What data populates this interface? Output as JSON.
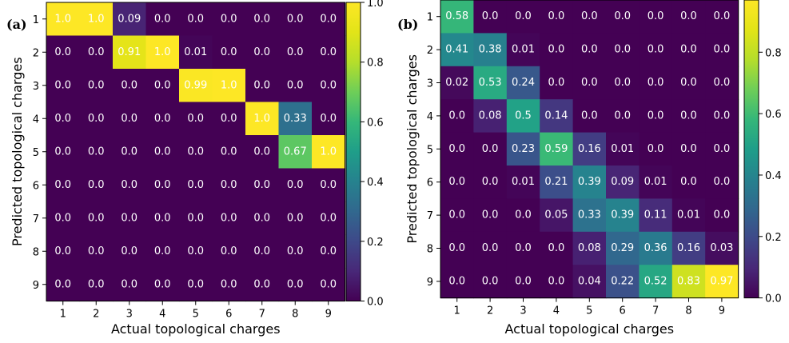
{
  "chart_data": [
    {
      "type": "heatmap",
      "panel_label": "(a)",
      "title": "",
      "xlabel": "Actual topological charges",
      "ylabel": "Predicted topological charges",
      "x_categories": [
        "1",
        "2",
        "3",
        "4",
        "5",
        "6",
        "7",
        "8",
        "9"
      ],
      "y_categories": [
        "1",
        "2",
        "3",
        "4",
        "5",
        "6",
        "7",
        "8",
        "9"
      ],
      "colormap": "viridis",
      "vmin": 0.0,
      "vmax": 1.0,
      "colorbar_ticks": [
        "0.0",
        "0.2",
        "0.4",
        "0.6",
        "0.8",
        "1.0"
      ],
      "values": [
        [
          "1.0",
          "1.0",
          "0.09",
          "0.0",
          "0.0",
          "0.0",
          "0.0",
          "0.0",
          "0.0"
        ],
        [
          "0.0",
          "0.0",
          "0.91",
          "1.0",
          "0.01",
          "0.0",
          "0.0",
          "0.0",
          "0.0"
        ],
        [
          "0.0",
          "0.0",
          "0.0",
          "0.0",
          "0.99",
          "1.0",
          "0.0",
          "0.0",
          "0.0"
        ],
        [
          "0.0",
          "0.0",
          "0.0",
          "0.0",
          "0.0",
          "0.0",
          "1.0",
          "0.33",
          "0.0"
        ],
        [
          "0.0",
          "0.0",
          "0.0",
          "0.0",
          "0.0",
          "0.0",
          "0.0",
          "0.67",
          "1.0"
        ],
        [
          "0.0",
          "0.0",
          "0.0",
          "0.0",
          "0.0",
          "0.0",
          "0.0",
          "0.0",
          "0.0"
        ],
        [
          "0.0",
          "0.0",
          "0.0",
          "0.0",
          "0.0",
          "0.0",
          "0.0",
          "0.0",
          "0.0"
        ],
        [
          "0.0",
          "0.0",
          "0.0",
          "0.0",
          "0.0",
          "0.0",
          "0.0",
          "0.0",
          "0.0"
        ],
        [
          "0.0",
          "0.0",
          "0.0",
          "0.0",
          "0.0",
          "0.0",
          "0.0",
          "0.0",
          "0.0"
        ]
      ]
    },
    {
      "type": "heatmap",
      "panel_label": "(b)",
      "title": "",
      "xlabel": "Actual topological charges",
      "ylabel": "Predicted topological charges",
      "x_categories": [
        "1",
        "2",
        "3",
        "4",
        "5",
        "6",
        "7",
        "8",
        "9"
      ],
      "y_categories": [
        "1",
        "2",
        "3",
        "4",
        "5",
        "6",
        "7",
        "8",
        "9"
      ],
      "colormap": "viridis",
      "vmin": 0.0,
      "vmax": 0.97,
      "colorbar_ticks": [
        "0.0",
        "0.2",
        "0.4",
        "0.6",
        "0.8"
      ],
      "values": [
        [
          "0.58",
          "0.0",
          "0.0",
          "0.0",
          "0.0",
          "0.0",
          "0.0",
          "0.0",
          "0.0"
        ],
        [
          "0.41",
          "0.38",
          "0.01",
          "0.0",
          "0.0",
          "0.0",
          "0.0",
          "0.0",
          "0.0"
        ],
        [
          "0.02",
          "0.53",
          "0.24",
          "0.0",
          "0.0",
          "0.0",
          "0.0",
          "0.0",
          "0.0"
        ],
        [
          "0.0",
          "0.08",
          "0.5",
          "0.14",
          "0.0",
          "0.0",
          "0.0",
          "0.0",
          "0.0"
        ],
        [
          "0.0",
          "0.0",
          "0.23",
          "0.59",
          "0.16",
          "0.01",
          "0.0",
          "0.0",
          "0.0"
        ],
        [
          "0.0",
          "0.0",
          "0.01",
          "0.21",
          "0.39",
          "0.09",
          "0.01",
          "0.0",
          "0.0"
        ],
        [
          "0.0",
          "0.0",
          "0.0",
          "0.05",
          "0.33",
          "0.39",
          "0.11",
          "0.01",
          "0.0"
        ],
        [
          "0.0",
          "0.0",
          "0.0",
          "0.0",
          "0.08",
          "0.29",
          "0.36",
          "0.16",
          "0.03"
        ],
        [
          "0.0",
          "0.0",
          "0.0",
          "0.0",
          "0.04",
          "0.22",
          "0.52",
          "0.83",
          "0.97"
        ]
      ]
    }
  ]
}
